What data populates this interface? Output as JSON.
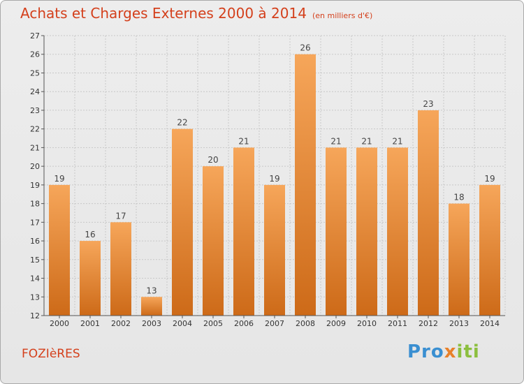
{
  "title": "Achats et Charges Externes 2000 à 2014",
  "subtitle": "(en milliers d'€)",
  "commune": "FOZIèRES",
  "logo": {
    "text": "Proxiti",
    "parts": [
      "Pro",
      "x",
      "iti"
    ],
    "colors": [
      "#3a8fd1",
      "#e8812a",
      "#8cbf3f"
    ]
  },
  "colors": {
    "bar_light": "#f6a65a",
    "bar_dark": "#cd6a18",
    "title": "#d4401c"
  },
  "chart_data": {
    "type": "bar",
    "categories": [
      "2000",
      "2001",
      "2002",
      "2003",
      "2004",
      "2005",
      "2006",
      "2007",
      "2008",
      "2009",
      "2010",
      "2011",
      "2012",
      "2013",
      "2014"
    ],
    "values": [
      19,
      16,
      17,
      13,
      22,
      20,
      21,
      19,
      26,
      21,
      21,
      21,
      23,
      18,
      19
    ],
    "data_labels": [
      "19",
      "16",
      "17",
      "13",
      "22",
      "20",
      "21",
      "19",
      "26",
      "21",
      "21",
      "21",
      "23",
      "18",
      "19"
    ],
    "ylim": [
      12,
      27
    ],
    "yticks": [
      "12",
      "13",
      "14",
      "15",
      "16",
      "17",
      "18",
      "19",
      "20",
      "21",
      "22",
      "23",
      "24",
      "25",
      "26",
      "27"
    ],
    "grid": true,
    "xlabel": "",
    "ylabel": ""
  }
}
